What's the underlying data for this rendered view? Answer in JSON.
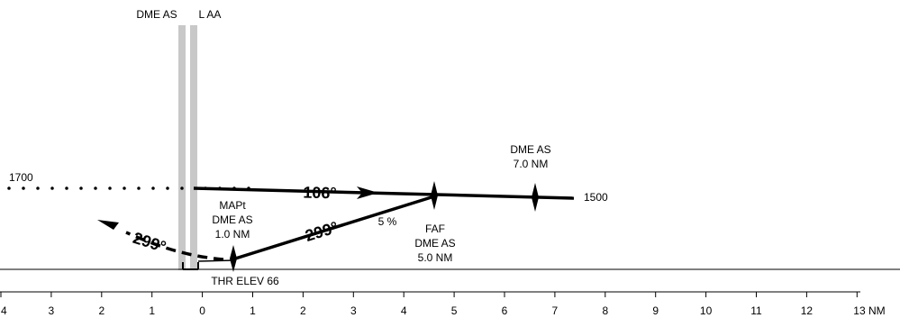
{
  "facilities": {
    "dme_top": "DME AS",
    "loc_top": "L AA"
  },
  "altitudes": {
    "left": "1700",
    "right": "1500"
  },
  "fixes": {
    "dme7": [
      "DME AS",
      "7.0 NM"
    ],
    "faf": [
      "FAF",
      "DME AS",
      "5.0 NM"
    ],
    "mapt": [
      "MAPt",
      "DME AS",
      "1.0 NM"
    ]
  },
  "courses": {
    "inbound": "106°",
    "outbound": "299°",
    "missed": "299°"
  },
  "gradient": "5 %",
  "threshold": "THR ELEV 66",
  "scale": {
    "ticks": [
      "4",
      "3",
      "2",
      "1",
      "0",
      "1",
      "2",
      "3",
      "4",
      "5",
      "6",
      "7",
      "8",
      "9",
      "10",
      "11",
      "12",
      "13 NM"
    ]
  },
  "colors": {
    "ink": "#000000",
    "facility_bar": "#c8c8c8"
  }
}
